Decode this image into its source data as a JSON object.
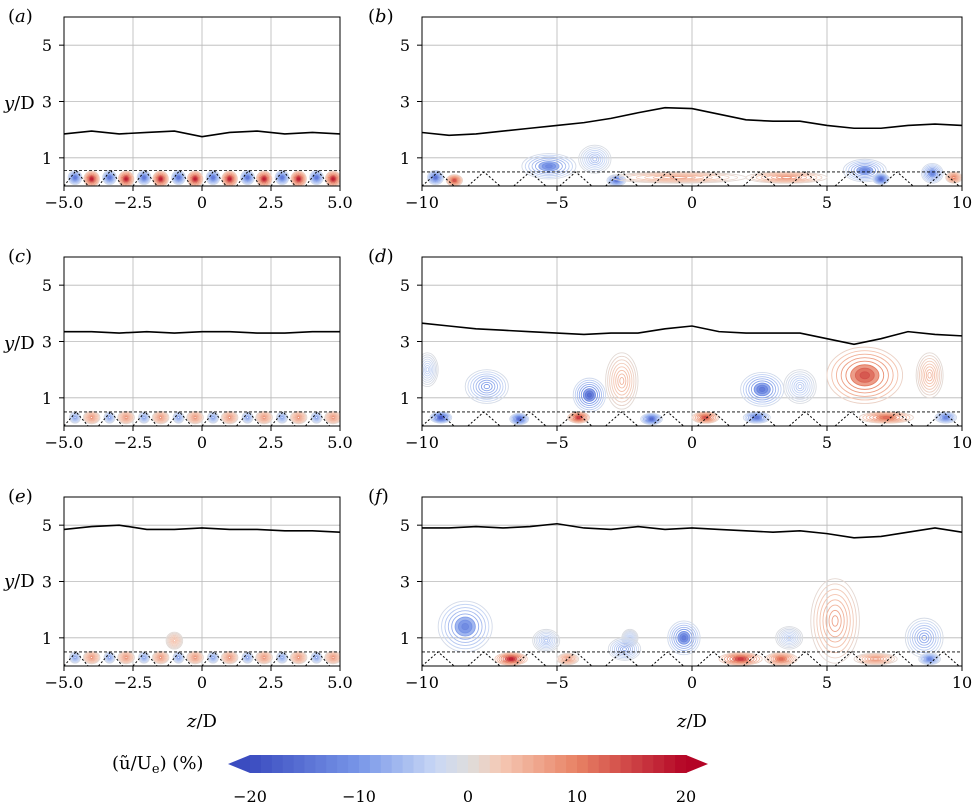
{
  "chart_data": [
    {
      "panel": "(a)",
      "type": "contour",
      "xlabel": "",
      "ylabel": "y/D",
      "xlim": [
        -5,
        5
      ],
      "ylim": [
        0,
        6
      ],
      "xticks": [
        "−5.0",
        "−2.5",
        "0",
        "2.5",
        "5.0"
      ],
      "xtick_values": [
        -5,
        -2.5,
        0,
        2.5,
        5
      ],
      "yticks": [
        "1",
        "3",
        "5"
      ],
      "ytick_values": [
        1,
        3,
        5
      ],
      "edge_line": {
        "z": [
          -5,
          -4,
          -3,
          -2,
          -1,
          0,
          1,
          2,
          3,
          4,
          5
        ],
        "y": [
          1.85,
          1.95,
          1.85,
          1.9,
          1.95,
          1.75,
          1.9,
          1.95,
          1.85,
          1.9,
          1.85
        ]
      },
      "element_period": 1.25,
      "element_height": 0.55,
      "blobs": [
        {
          "z": -4.6,
          "y": 0.3,
          "amp": -14,
          "w": 0.25,
          "h": 0.25
        },
        {
          "z": -3.35,
          "y": 0.3,
          "amp": -14,
          "w": 0.25,
          "h": 0.25
        },
        {
          "z": -2.1,
          "y": 0.3,
          "amp": -14,
          "w": 0.25,
          "h": 0.25
        },
        {
          "z": -0.85,
          "y": 0.3,
          "amp": -14,
          "w": 0.25,
          "h": 0.25
        },
        {
          "z": 0.4,
          "y": 0.3,
          "amp": -14,
          "w": 0.25,
          "h": 0.25
        },
        {
          "z": 1.65,
          "y": 0.3,
          "amp": -14,
          "w": 0.25,
          "h": 0.25
        },
        {
          "z": 2.9,
          "y": 0.3,
          "amp": -14,
          "w": 0.25,
          "h": 0.25
        },
        {
          "z": 4.15,
          "y": 0.3,
          "amp": -14,
          "w": 0.25,
          "h": 0.25
        },
        {
          "z": -4.0,
          "y": 0.25,
          "amp": 18,
          "w": 0.28,
          "h": 0.28
        },
        {
          "z": -2.75,
          "y": 0.25,
          "amp": 18,
          "w": 0.28,
          "h": 0.28
        },
        {
          "z": -1.5,
          "y": 0.25,
          "amp": 18,
          "w": 0.28,
          "h": 0.28
        },
        {
          "z": -0.25,
          "y": 0.25,
          "amp": 18,
          "w": 0.28,
          "h": 0.28
        },
        {
          "z": 1.0,
          "y": 0.25,
          "amp": 18,
          "w": 0.28,
          "h": 0.28
        },
        {
          "z": 2.25,
          "y": 0.25,
          "amp": 18,
          "w": 0.28,
          "h": 0.28
        },
        {
          "z": 3.5,
          "y": 0.25,
          "amp": 18,
          "w": 0.28,
          "h": 0.28
        },
        {
          "z": 4.75,
          "y": 0.25,
          "amp": 18,
          "w": 0.28,
          "h": 0.28
        }
      ]
    },
    {
      "panel": "(b)",
      "type": "contour",
      "xlabel": "",
      "ylabel": "",
      "xlim": [
        -10,
        10
      ],
      "ylim": [
        0,
        6
      ],
      "xticks": [
        "−10",
        "−5",
        "0",
        "5",
        "10"
      ],
      "xtick_values": [
        -10,
        -5,
        0,
        5,
        10
      ],
      "yticks": [
        "1",
        "3",
        "5"
      ],
      "ytick_values": [
        1,
        3,
        5
      ],
      "edge_line": {
        "z": [
          -10,
          -9,
          -8,
          -7,
          -6,
          -5,
          -4,
          -3,
          -2,
          -1,
          0,
          1,
          2,
          3,
          4,
          5,
          6,
          7,
          8,
          9,
          10
        ],
        "y": [
          1.9,
          1.8,
          1.85,
          1.95,
          2.05,
          2.15,
          2.25,
          2.4,
          2.6,
          2.78,
          2.75,
          2.55,
          2.35,
          2.3,
          2.3,
          2.15,
          2.05,
          2.05,
          2.15,
          2.2,
          2.15
        ]
      },
      "element_period": 1.7,
      "element_height": 0.5,
      "blobs": [
        {
          "z": -5.3,
          "y": 0.7,
          "amp": -12,
          "w": 1.0,
          "h": 0.45
        },
        {
          "z": -3.6,
          "y": 0.95,
          "amp": -6,
          "w": 0.6,
          "h": 0.5
        },
        {
          "z": -9.5,
          "y": 0.3,
          "amp": -15,
          "w": 0.3,
          "h": 0.25
        },
        {
          "z": -8.8,
          "y": 0.2,
          "amp": 14,
          "w": 0.3,
          "h": 0.2
        },
        {
          "z": -2.8,
          "y": 0.2,
          "amp": -14,
          "w": 0.35,
          "h": 0.2
        },
        {
          "z": -0.5,
          "y": 0.3,
          "amp": 6,
          "w": 2.5,
          "h": 0.2
        },
        {
          "z": 6.4,
          "y": 0.55,
          "amp": -12,
          "w": 0.8,
          "h": 0.4
        },
        {
          "z": 7.0,
          "y": 0.25,
          "amp": -16,
          "w": 0.3,
          "h": 0.2
        },
        {
          "z": 8.9,
          "y": 0.45,
          "amp": -12,
          "w": 0.4,
          "h": 0.35
        },
        {
          "z": 9.7,
          "y": 0.3,
          "amp": 10,
          "w": 0.3,
          "h": 0.2
        },
        {
          "z": 3.5,
          "y": 0.3,
          "amp": 8,
          "w": 1.5,
          "h": 0.2
        }
      ]
    },
    {
      "panel": "(c)",
      "type": "contour",
      "xlabel": "",
      "ylabel": "y/D",
      "xlim": [
        -5,
        5
      ],
      "ylim": [
        0,
        6
      ],
      "xticks": [
        "−5.0",
        "−2.5",
        "0",
        "2.5",
        "5.0"
      ],
      "xtick_values": [
        -5,
        -2.5,
        0,
        2.5,
        5
      ],
      "yticks": [
        "1",
        "3",
        "5"
      ],
      "ytick_values": [
        1,
        3,
        5
      ],
      "edge_line": {
        "z": [
          -5,
          -4,
          -3,
          -2,
          -1,
          0,
          1,
          2,
          3,
          4,
          5
        ],
        "y": [
          3.35,
          3.35,
          3.3,
          3.35,
          3.3,
          3.35,
          3.35,
          3.3,
          3.3,
          3.35,
          3.35
        ]
      },
      "element_period": 1.25,
      "element_height": 0.5,
      "blobs": [
        {
          "z": -4.6,
          "y": 0.3,
          "amp": -8,
          "w": 0.2,
          "h": 0.2
        },
        {
          "z": -3.35,
          "y": 0.3,
          "amp": -8,
          "w": 0.2,
          "h": 0.2
        },
        {
          "z": -2.1,
          "y": 0.3,
          "amp": -8,
          "w": 0.2,
          "h": 0.2
        },
        {
          "z": -0.85,
          "y": 0.3,
          "amp": -8,
          "w": 0.2,
          "h": 0.2
        },
        {
          "z": 0.4,
          "y": 0.3,
          "amp": -8,
          "w": 0.2,
          "h": 0.2
        },
        {
          "z": 1.65,
          "y": 0.3,
          "amp": -8,
          "w": 0.2,
          "h": 0.2
        },
        {
          "z": 2.9,
          "y": 0.3,
          "amp": -8,
          "w": 0.2,
          "h": 0.2
        },
        {
          "z": 4.15,
          "y": 0.3,
          "amp": -8,
          "w": 0.2,
          "h": 0.2
        },
        {
          "z": -4.0,
          "y": 0.3,
          "amp": 8,
          "w": 0.3,
          "h": 0.22
        },
        {
          "z": -2.75,
          "y": 0.3,
          "amp": 8,
          "w": 0.3,
          "h": 0.22
        },
        {
          "z": -1.5,
          "y": 0.3,
          "amp": 8,
          "w": 0.3,
          "h": 0.22
        },
        {
          "z": -0.25,
          "y": 0.3,
          "amp": 8,
          "w": 0.3,
          "h": 0.22
        },
        {
          "z": 1.0,
          "y": 0.3,
          "amp": 8,
          "w": 0.3,
          "h": 0.22
        },
        {
          "z": 2.25,
          "y": 0.3,
          "amp": 8,
          "w": 0.3,
          "h": 0.22
        },
        {
          "z": 3.5,
          "y": 0.3,
          "amp": 8,
          "w": 0.3,
          "h": 0.22
        },
        {
          "z": 4.75,
          "y": 0.3,
          "amp": 8,
          "w": 0.3,
          "h": 0.22
        }
      ]
    },
    {
      "panel": "(d)",
      "type": "contour",
      "xlabel": "",
      "ylabel": "",
      "xlim": [
        -10,
        10
      ],
      "ylim": [
        0,
        6
      ],
      "xticks": [
        "−10",
        "−5",
        "0",
        "5",
        "10"
      ],
      "xtick_values": [
        -10,
        -5,
        0,
        5,
        10
      ],
      "yticks": [
        "1",
        "3",
        "5"
      ],
      "ytick_values": [
        1,
        3,
        5
      ],
      "edge_line": {
        "z": [
          -10,
          -9,
          -8,
          -7,
          -6,
          -5,
          -4,
          -3,
          -2,
          -1,
          0,
          1,
          2,
          3,
          4,
          5,
          6,
          7,
          8,
          9,
          10
        ],
        "y": [
          3.65,
          3.55,
          3.45,
          3.4,
          3.35,
          3.3,
          3.25,
          3.3,
          3.3,
          3.45,
          3.55,
          3.35,
          3.3,
          3.3,
          3.3,
          3.1,
          2.9,
          3.1,
          3.35,
          3.25,
          3.2
        ]
      },
      "element_period": 1.7,
      "element_height": 0.5,
      "blobs": [
        {
          "z": -9.8,
          "y": 2.0,
          "amp": -4,
          "w": 0.4,
          "h": 0.6
        },
        {
          "z": -7.6,
          "y": 1.4,
          "amp": -10,
          "w": 0.8,
          "h": 0.6
        },
        {
          "z": -3.8,
          "y": 1.1,
          "amp": -16,
          "w": 0.6,
          "h": 0.6
        },
        {
          "z": -2.6,
          "y": 1.6,
          "amp": 5,
          "w": 0.6,
          "h": 1.0
        },
        {
          "z": 2.6,
          "y": 1.3,
          "amp": -14,
          "w": 0.8,
          "h": 0.6
        },
        {
          "z": 4.0,
          "y": 1.4,
          "amp": -5,
          "w": 0.6,
          "h": 0.6
        },
        {
          "z": 6.4,
          "y": 1.8,
          "amp": 14,
          "w": 1.4,
          "h": 1.0
        },
        {
          "z": 8.8,
          "y": 1.8,
          "amp": 5,
          "w": 0.5,
          "h": 0.8
        },
        {
          "z": -9.3,
          "y": 0.3,
          "amp": -18,
          "w": 0.4,
          "h": 0.2
        },
        {
          "z": -6.4,
          "y": 0.25,
          "amp": -16,
          "w": 0.35,
          "h": 0.2
        },
        {
          "z": -4.2,
          "y": 0.3,
          "amp": 16,
          "w": 0.4,
          "h": 0.2
        },
        {
          "z": -1.5,
          "y": 0.25,
          "amp": -16,
          "w": 0.4,
          "h": 0.2
        },
        {
          "z": 0.5,
          "y": 0.3,
          "amp": 14,
          "w": 0.5,
          "h": 0.2
        },
        {
          "z": 2.4,
          "y": 0.3,
          "amp": -14,
          "w": 0.5,
          "h": 0.2
        },
        {
          "z": 7.2,
          "y": 0.3,
          "amp": 12,
          "w": 1.0,
          "h": 0.2
        },
        {
          "z": 9.4,
          "y": 0.3,
          "amp": -12,
          "w": 0.4,
          "h": 0.2
        }
      ]
    },
    {
      "panel": "(e)",
      "type": "contour",
      "xlabel": "z/D",
      "ylabel": "y/D",
      "xlim": [
        -5,
        5
      ],
      "ylim": [
        0,
        6
      ],
      "xticks": [
        "−5.0",
        "−2.5",
        "0",
        "2.5",
        "5.0"
      ],
      "xtick_values": [
        -5,
        -2.5,
        0,
        2.5,
        5
      ],
      "yticks": [
        "1",
        "3",
        "5"
      ],
      "ytick_values": [
        1,
        3,
        5
      ],
      "edge_line": {
        "z": [
          -5,
          -4,
          -3,
          -2,
          -1,
          0,
          1,
          2,
          3,
          4,
          5
        ],
        "y": [
          4.85,
          4.95,
          5.0,
          4.85,
          4.85,
          4.9,
          4.85,
          4.85,
          4.8,
          4.8,
          4.75
        ]
      },
      "element_period": 1.25,
      "element_height": 0.5,
      "blobs": [
        {
          "z": -1.0,
          "y": 0.9,
          "amp": 4,
          "w": 0.3,
          "h": 0.3
        },
        {
          "z": -4.6,
          "y": 0.3,
          "amp": -8,
          "w": 0.2,
          "h": 0.2
        },
        {
          "z": -3.35,
          "y": 0.3,
          "amp": -8,
          "w": 0.2,
          "h": 0.2
        },
        {
          "z": -2.1,
          "y": 0.3,
          "amp": -8,
          "w": 0.2,
          "h": 0.2
        },
        {
          "z": -0.85,
          "y": 0.3,
          "amp": -8,
          "w": 0.2,
          "h": 0.2
        },
        {
          "z": 0.4,
          "y": 0.3,
          "amp": -8,
          "w": 0.2,
          "h": 0.2
        },
        {
          "z": 1.65,
          "y": 0.3,
          "amp": -8,
          "w": 0.2,
          "h": 0.2
        },
        {
          "z": 2.9,
          "y": 0.3,
          "amp": -8,
          "w": 0.2,
          "h": 0.2
        },
        {
          "z": 4.15,
          "y": 0.3,
          "amp": -8,
          "w": 0.2,
          "h": 0.2
        },
        {
          "z": -4.0,
          "y": 0.3,
          "amp": 8,
          "w": 0.3,
          "h": 0.22
        },
        {
          "z": -2.75,
          "y": 0.3,
          "amp": 8,
          "w": 0.3,
          "h": 0.22
        },
        {
          "z": -1.5,
          "y": 0.3,
          "amp": 8,
          "w": 0.3,
          "h": 0.22
        },
        {
          "z": -0.25,
          "y": 0.3,
          "amp": 8,
          "w": 0.3,
          "h": 0.22
        },
        {
          "z": 1.0,
          "y": 0.3,
          "amp": 8,
          "w": 0.3,
          "h": 0.22
        },
        {
          "z": 2.25,
          "y": 0.3,
          "amp": 8,
          "w": 0.3,
          "h": 0.22
        },
        {
          "z": 3.5,
          "y": 0.3,
          "amp": 8,
          "w": 0.3,
          "h": 0.22
        },
        {
          "z": 4.75,
          "y": 0.3,
          "amp": 8,
          "w": 0.3,
          "h": 0.22
        }
      ]
    },
    {
      "panel": "(f)",
      "type": "contour",
      "xlabel": "z/D",
      "ylabel": "",
      "xlim": [
        -10,
        10
      ],
      "ylim": [
        0,
        6
      ],
      "xticks": [
        "−10",
        "−5",
        "0",
        "5",
        "10"
      ],
      "xtick_values": [
        -10,
        -5,
        0,
        5,
        10
      ],
      "yticks": [
        "1",
        "3",
        "5"
      ],
      "ytick_values": [
        1,
        3,
        5
      ],
      "edge_line": {
        "z": [
          -10,
          -9,
          -8,
          -7,
          -6,
          -5,
          -4,
          -3,
          -2,
          -1,
          0,
          1,
          2,
          3,
          4,
          5,
          6,
          7,
          8,
          9,
          10
        ],
        "y": [
          4.9,
          4.9,
          4.95,
          4.9,
          4.95,
          5.05,
          4.9,
          4.85,
          4.95,
          4.85,
          4.9,
          4.85,
          4.8,
          4.75,
          4.8,
          4.7,
          4.55,
          4.6,
          4.75,
          4.9,
          4.75
        ]
      },
      "element_period": 1.7,
      "element_height": 0.5,
      "blobs": [
        {
          "z": -8.4,
          "y": 1.4,
          "amp": -12,
          "w": 1.0,
          "h": 0.9
        },
        {
          "z": -5.4,
          "y": 0.9,
          "amp": -5,
          "w": 0.5,
          "h": 0.4
        },
        {
          "z": -2.3,
          "y": 1.0,
          "amp": -4,
          "w": 0.3,
          "h": 0.3
        },
        {
          "z": -0.3,
          "y": 1.0,
          "amp": -14,
          "w": 0.6,
          "h": 0.6
        },
        {
          "z": -2.5,
          "y": 0.6,
          "amp": -8,
          "w": 0.6,
          "h": 0.4
        },
        {
          "z": 3.6,
          "y": 1.0,
          "amp": -4,
          "w": 0.5,
          "h": 0.4
        },
        {
          "z": 5.3,
          "y": 1.6,
          "amp": 7,
          "w": 0.9,
          "h": 1.5
        },
        {
          "z": 8.6,
          "y": 1.0,
          "amp": -9,
          "w": 0.7,
          "h": 0.7
        },
        {
          "z": -6.7,
          "y": 0.25,
          "amp": 18,
          "w": 0.6,
          "h": 0.22
        },
        {
          "z": -4.6,
          "y": 0.25,
          "amp": 8,
          "w": 0.4,
          "h": 0.2
        },
        {
          "z": 1.8,
          "y": 0.25,
          "amp": 16,
          "w": 0.8,
          "h": 0.22
        },
        {
          "z": 3.3,
          "y": 0.25,
          "amp": 12,
          "w": 0.6,
          "h": 0.22
        },
        {
          "z": 6.8,
          "y": 0.25,
          "amp": 8,
          "w": 0.8,
          "h": 0.2
        },
        {
          "z": 8.8,
          "y": 0.25,
          "amp": -12,
          "w": 0.4,
          "h": 0.2
        }
      ]
    }
  ],
  "colorbar": {
    "label_prefix": "(ũ/U",
    "label_sub": "e",
    "label_suffix": ") (%)",
    "ticks": [
      "−20",
      "−10",
      "0",
      "10",
      "20"
    ],
    "tick_values": [
      -20,
      -10,
      0,
      10,
      20
    ],
    "range": [
      -20,
      20
    ]
  },
  "panel_labels": {
    "a_open": "(",
    "a": "a",
    "a_close": ")",
    "b_open": "(",
    "b": "b",
    "b_close": ")",
    "c_open": "(",
    "c": "c",
    "c_close": ")",
    "d_open": "(",
    "d": "d",
    "d_close": ")",
    "e_open": "(",
    "e": "e",
    "e_close": ")",
    "f_open": "(",
    "f": "f",
    "f_close": ")"
  },
  "axis_labels": {
    "y_prefix": "y",
    "y_suffix": "/D",
    "x_prefix": "z",
    "x_suffix": "/D"
  }
}
